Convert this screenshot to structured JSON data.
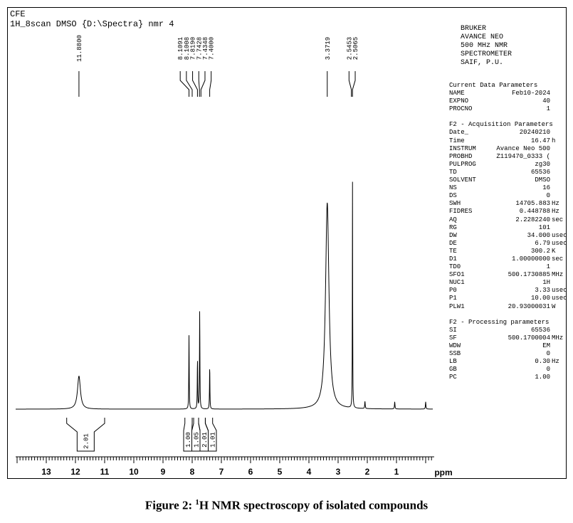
{
  "spectrum_header": {
    "line1": "CFE",
    "line2": "1H_8scan DMSO {D:\\Spectra} nmr 4"
  },
  "instrument": [
    "BRUKER",
    "AVANCE NEO",
    "500 MHz NMR",
    "SPECTROMETER",
    "SAIF, P.U."
  ],
  "current_params": {
    "title": "Current Data Parameters",
    "rows": [
      {
        "name": "NAME",
        "value": "Feb10-2024",
        "unit": ""
      },
      {
        "name": "EXPNO",
        "value": "40",
        "unit": ""
      },
      {
        "name": "PROCNO",
        "value": "1",
        "unit": ""
      }
    ]
  },
  "acquisition_params": {
    "title": "F2 - Acquisition Parameters",
    "rows": [
      {
        "name": "Date_",
        "value": "20240210",
        "unit": ""
      },
      {
        "name": "Time",
        "value": "16.47",
        "unit": "h"
      },
      {
        "name": "INSTRUM",
        "value": "Avance Neo 500",
        "unit": ""
      },
      {
        "name": "PROBHD",
        "value": "Z119470_0333 (",
        "unit": ""
      },
      {
        "name": "PULPROG",
        "value": "zg30",
        "unit": ""
      },
      {
        "name": "TD",
        "value": "65536",
        "unit": ""
      },
      {
        "name": "SOLVENT",
        "value": "DMSO",
        "unit": ""
      },
      {
        "name": "NS",
        "value": "16",
        "unit": ""
      },
      {
        "name": "DS",
        "value": "0",
        "unit": ""
      },
      {
        "name": "SWH",
        "value": "14705.883",
        "unit": "Hz"
      },
      {
        "name": "FIDRES",
        "value": "0.448788",
        "unit": "Hz"
      },
      {
        "name": "AQ",
        "value": "2.2282240",
        "unit": "sec"
      },
      {
        "name": "RG",
        "value": "101",
        "unit": ""
      },
      {
        "name": "DW",
        "value": "34.000",
        "unit": "usec"
      },
      {
        "name": "DE",
        "value": "6.79",
        "unit": "usec"
      },
      {
        "name": "TE",
        "value": "300.2",
        "unit": "K"
      },
      {
        "name": "D1",
        "value": "1.00000000",
        "unit": "sec"
      },
      {
        "name": "TD0",
        "value": "1",
        "unit": ""
      },
      {
        "name": "SFO1",
        "value": "500.1730885",
        "unit": "MHz"
      },
      {
        "name": "NUC1",
        "value": "1H",
        "unit": ""
      },
      {
        "name": "P0",
        "value": "3.33",
        "unit": "usec"
      },
      {
        "name": "P1",
        "value": "10.00",
        "unit": "usec"
      },
      {
        "name": "PLW1",
        "value": "20.93000031",
        "unit": "W"
      }
    ]
  },
  "processing_params": {
    "title": "F2 - Processing parameters",
    "rows": [
      {
        "name": "SI",
        "value": "65536",
        "unit": ""
      },
      {
        "name": "SF",
        "value": "500.1700004",
        "unit": "MHz"
      },
      {
        "name": "WDW",
        "value": "EM",
        "unit": ""
      },
      {
        "name": "SSB",
        "value": "0",
        "unit": ""
      },
      {
        "name": "LB",
        "value": "0.30",
        "unit": "Hz"
      },
      {
        "name": "GB",
        "value": "0",
        "unit": ""
      },
      {
        "name": "PC",
        "value": "1.00",
        "unit": ""
      }
    ]
  },
  "chart_data": {
    "type": "line",
    "xlabel": "ppm",
    "xlim": [
      14,
      0
    ],
    "x_ticks": [
      13,
      12,
      11,
      10,
      9,
      8,
      7,
      6,
      5,
      4,
      3,
      2,
      1
    ],
    "peaks": [
      {
        "ppm": 11.88,
        "height": 0.16,
        "width": 0.06
      },
      {
        "ppm": 8.1091,
        "height": 0.36,
        "width": 0.008
      },
      {
        "ppm": 7.819,
        "height": 0.24,
        "width": 0.008
      },
      {
        "ppm": 7.7428,
        "height": 0.48,
        "width": 0.008
      },
      {
        "ppm": 7.4,
        "height": 0.21,
        "width": 0.008
      },
      {
        "ppm": 3.3719,
        "height": 1.0,
        "width": 0.07
      },
      {
        "ppm": 2.5065,
        "height": 1.1,
        "width": 0.006
      },
      {
        "ppm": 2.08,
        "height": 0.035,
        "width": 0.01
      },
      {
        "ppm": 1.06,
        "height": 0.035,
        "width": 0.01
      },
      {
        "ppm": 0.0,
        "height": 0.035,
        "width": 0.01
      }
    ],
    "peak_labels": [
      "11.8800",
      "8.1091",
      "8.1008",
      "7.8190",
      "7.7428",
      "7.4348",
      "7.4000",
      "3.3719",
      "2.5453",
      "2.5065"
    ],
    "peak_label_groups": [
      {
        "ppm": 11.88,
        "labels": [
          "11.8800"
        ]
      },
      {
        "ppm": 7.88,
        "labels": [
          "8.1091",
          "8.1008",
          "7.8190",
          "7.7428",
          "7.4348",
          "7.4000"
        ],
        "targets": [
          8.1091,
          8.0,
          7.819,
          7.75,
          7.7,
          7.4
        ]
      },
      {
        "ppm": 3.3719,
        "labels": [
          "3.3719"
        ]
      },
      {
        "ppm": 2.52,
        "labels": [
          "2.5453",
          "2.5065"
        ],
        "targets": [
          2.5453,
          2.5065
        ]
      }
    ],
    "integrations": [
      {
        "from": 12.3,
        "to": 11.0,
        "value": "2.01"
      },
      {
        "from": 8.25,
        "to": 8.0,
        "value": "1.00"
      },
      {
        "from": 7.95,
        "to": 7.78,
        "value": "1.05"
      },
      {
        "from": 7.78,
        "to": 7.55,
        "value": "2.01"
      },
      {
        "from": 7.55,
        "to": 7.3,
        "value": "1.01"
      }
    ]
  },
  "caption": {
    "prefix": "Figure 2: ",
    "sup": "1",
    "rest": "H NMR spectroscopy of isolated compounds"
  }
}
